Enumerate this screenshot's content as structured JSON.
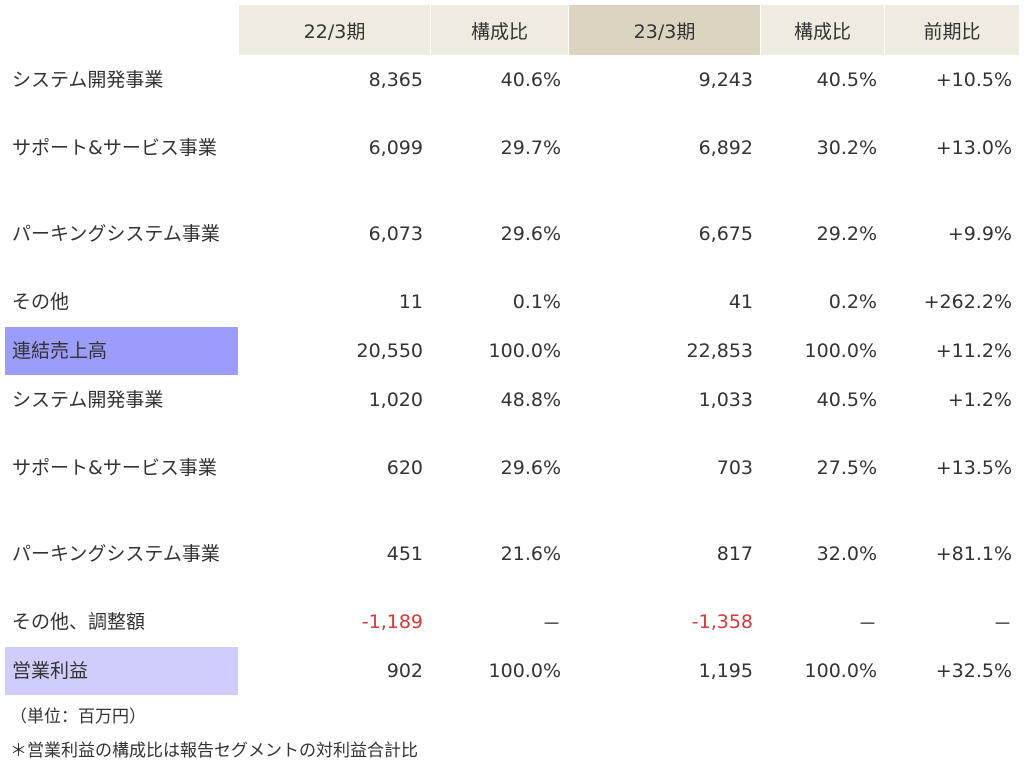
{
  "header": {
    "col1": "22/3期",
    "col2": "構成比",
    "col3": "23/3期",
    "col4": "構成比",
    "col5": "前期比"
  },
  "rows": [
    {
      "label": "システム開発事業",
      "v1": "8,365",
      "r1": "40.6%",
      "v2": "9,243",
      "r2": "40.5%",
      "yoy": "+10.5%"
    },
    {
      "label": "サポート&サービス事業",
      "v1": "6,099",
      "r1": "29.7%",
      "v2": "6,892",
      "r2": "30.2%",
      "yoy": "+13.0%"
    },
    {
      "label": "パーキングシステム事業",
      "v1": "6,073",
      "r1": "29.6%",
      "v2": "6,675",
      "r2": "29.2%",
      "yoy": "+9.9%"
    },
    {
      "label": "その他",
      "v1": "11",
      "r1": "0.1%",
      "v2": "41",
      "r2": "0.2%",
      "yoy": "+262.2%"
    },
    {
      "label": "連結売上高",
      "v1": "20,550",
      "r1": "100.0%",
      "v2": "22,853",
      "r2": "100.0%",
      "yoy": "+11.2%"
    },
    {
      "label": "システム開発事業",
      "v1": "1,020",
      "r1": "48.8%",
      "v2": "1,033",
      "r2": "40.5%",
      "yoy": "+1.2%"
    },
    {
      "label": "サポート&サービス事業",
      "v1": "620",
      "r1": "29.6%",
      "v2": "703",
      "r2": "27.5%",
      "yoy": "+13.5%"
    },
    {
      "label": "パーキングシステム事業",
      "v1": "451",
      "r1": "21.6%",
      "v2": "817",
      "r2": "32.0%",
      "yoy": "+81.1%"
    },
    {
      "label": "その他、調整額",
      "v1": "-1,189",
      "r1": "－",
      "v2": "-1,358",
      "r2": "－",
      "yoy": "－"
    },
    {
      "label": "営業利益",
      "v1": "902",
      "r1": "100.0%",
      "v2": "1,195",
      "r2": "100.0%",
      "yoy": "+32.5%"
    }
  ],
  "notes": {
    "unit": "（単位：百万円）",
    "footnote": "＊営業利益の構成比は報告セグメントの対利益合計比"
  },
  "colors": {
    "header_light": "#efebe1",
    "header_dark": "#dad4c1",
    "sales_highlight": "#9c9cfc",
    "profit_highlight": "#cfcdfb",
    "negative": "#d23a3a"
  }
}
